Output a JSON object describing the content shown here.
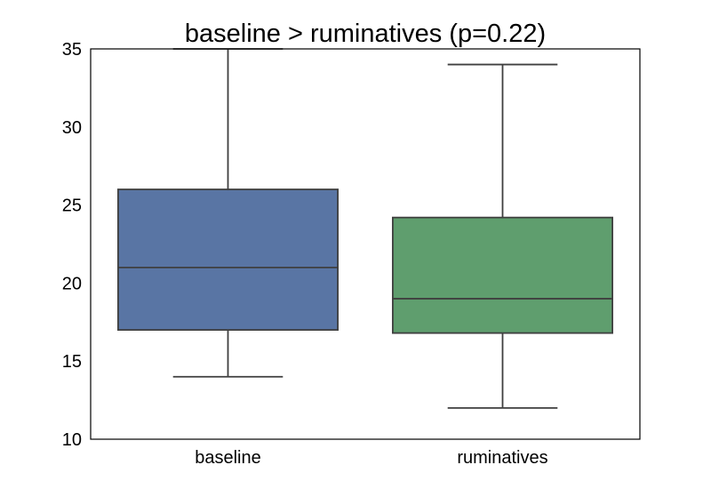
{
  "chart_data": {
    "type": "box",
    "title": "baseline > ruminatives (p=0.22)",
    "xlabel": "",
    "ylabel": "",
    "categories": [
      "baseline",
      "ruminatives"
    ],
    "ylim": [
      10,
      35
    ],
    "yticks": [
      10,
      15,
      20,
      25,
      30,
      35
    ],
    "grid": false,
    "boxes": [
      {
        "category": "baseline",
        "whisker_low": 14,
        "q1": 17,
        "median": 21,
        "q3": 26,
        "whisker_high": 35,
        "color": "#5975a4"
      },
      {
        "category": "ruminatives",
        "whisker_low": 12,
        "q1": 16.8,
        "median": 19,
        "q3": 24.2,
        "whisker_high": 34,
        "color": "#5f9e6e"
      }
    ]
  }
}
